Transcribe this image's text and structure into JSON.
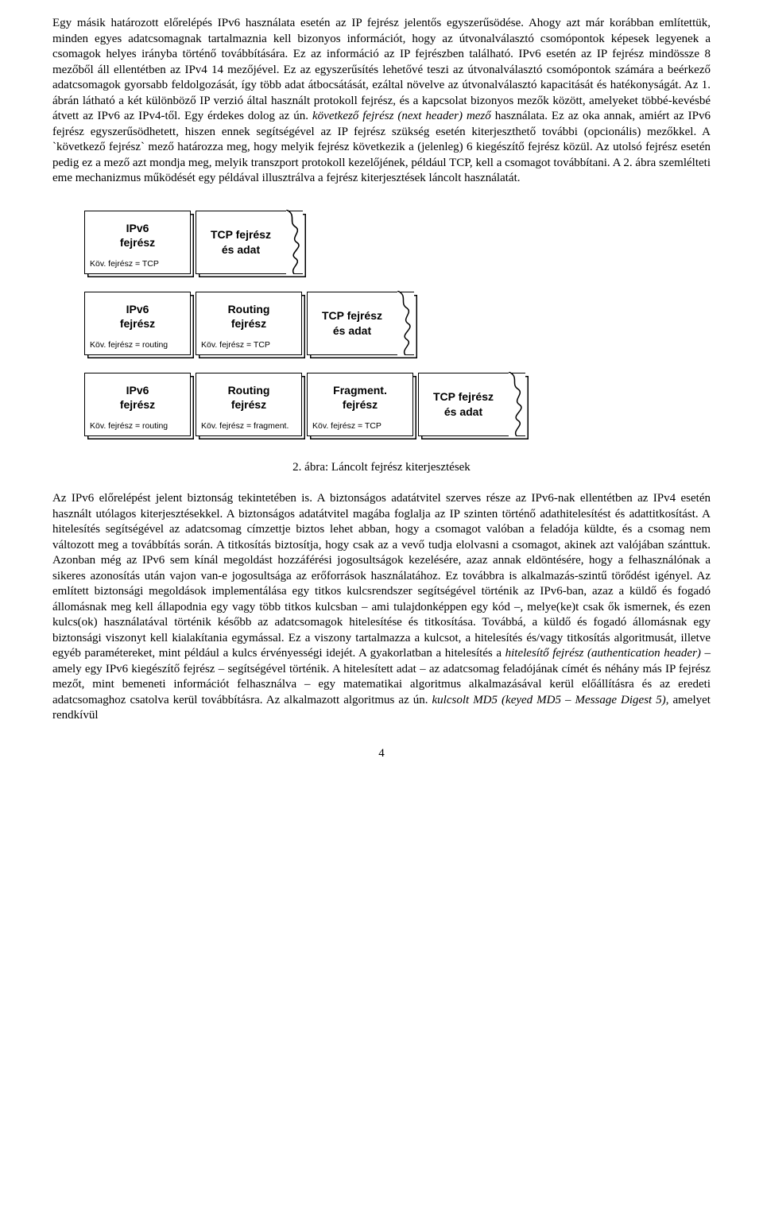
{
  "para1_a": "Egy másik határozott előrelépés IPv6 használata esetén az IP fejrész jelentős egyszerűsödése. Ahogy azt már korábban említettük, minden egyes adatcsomagnak tartalmaznia kell bizonyos információt, hogy az útvonalválasztó csomópontok képesek legyenek a csomagok helyes irányba történő továbbítására. Ez az információ az IP fejrészben található. IPv6 esetén az IP fejrész mindössze 8 mezőből áll ellentétben az IPv4 14 mezőjével. Ez az egyszerűsítés lehetővé teszi az útvonalválasztó csomópontok számára a beérkező adatcsomagok gyorsabb feldolgozását, így több adat átbocsátását, ezáltal növelve az útvonalválasztó kapacitását és hatékonyságát. Az 1. ábrán látható a két különböző IP verzió által használt protokoll fejrész, és a kapcsolat bizonyos mezők között, amelyeket többé-kevésbé átvett az IPv6 az IPv4-től. Egy érdekes dolog az ún. ",
  "para1_i": "következő fejrész (next header) mező",
  "para1_b": " használata. Ez az oka annak, amiért az IPv6 fejrész egyszerűsödhetett, hiszen ennek segítségével az IP fejrész szükség esetén kiterjeszthető további (opcionális) mezőkkel. A `következő fejrész` mező határozza meg, hogy melyik fejrész következik a (jelenleg) 6 kiegészítő fejrész közül. Az utolsó fejrész esetén pedig ez a mező azt mondja meg, melyik transzport protokoll kezelőjének, például TCP, kell a csomagot továbbítani. A 2. ábra szemlélteti eme mechanizmus működését egy példával illusztrálva a fejrész kiterjesztések láncolt használatát.",
  "diagram": {
    "ipv6": {
      "title": "IPv6\nfejrész"
    },
    "routing": {
      "title": "Routing\nfejrész"
    },
    "fragment": {
      "title": "Fragment.\nfejrész"
    },
    "tcp": {
      "title": "TCP fejrész\nés adat"
    },
    "next_tcp": "Köv. fejrész = TCP",
    "next_routing": "Köv. fejrész = routing",
    "next_fragment": "Köv. fejrész = fragment."
  },
  "caption": "2. ábra: Láncolt fejrész kiterjesztések",
  "para2_a": "Az IPv6 előrelépést jelent biztonság tekintetében is. A biztonságos adatátvitel szerves része az IPv6-nak ellentétben az IPv4 esetén használt utólagos kiterjesztésekkel. A biztonságos adatátvitel magába foglalja az IP szinten történő adathitelesítést és adattitkosítást. A hitelesítés segítségével az adatcsomag címzettje biztos lehet abban, hogy a csomagot valóban a feladója küldte, és a csomag nem változott meg a továbbítás során. A titkosítás biztosítja, hogy csak az a vevő tudja elolvasni a csomagot, akinek azt valójában szánttuk. Azonban még az IPv6 sem kínál megoldást hozzáférési jogosultságok kezelésére, azaz annak eldöntésére, hogy a felhasználónak a sikeres azonosítás után vajon van-e jogosultsága az erőforrások használatához. Ez továbbra is alkalmazás-szintű törődést igényel. Az említett biztonsági megoldások implementálása egy titkos kulcsrendszer segítségével történik az IPv6-ban, azaz a küldő és fogadó állomásnak meg kell állapodnia egy vagy több titkos kulcsban – ami tulajdonképpen egy kód –, melye(ke)t csak ők ismernek, és ezen kulcs(ok) használatával történik később az adatcsomagok hitelesítése és titkosítása. Továbbá, a küldő és fogadó állomásnak egy biztonsági viszonyt kell kialakítania egymással. Ez a viszony tartalmazza a kulcsot, a hitelesítés és/vagy titkosítás algoritmusát, illetve egyéb paramétereket, mint például a kulcs érvényességi idejét. A gyakorlatban a hitelesítés a ",
  "para2_i1": "hitelesítő fejrész (authentication header)",
  "para2_b": " – amely egy IPv6 kiegészítő fejrész – segítségével történik. A hitelesített adat – az adatcsomag feladójának címét és néhány más IP fejrész mezőt, mint bemeneti információt felhasználva – egy matematikai algoritmus alkalmazásával kerül előállításra és az eredeti adatcsomaghoz csatolva kerül továbbításra. Az alkalmazott algoritmus az ún. ",
  "para2_i2": "kulcsolt MD5 (keyed MD5 – Message Digest 5)",
  "para2_c": ", amelyet rendkívül",
  "pagenum": "4"
}
